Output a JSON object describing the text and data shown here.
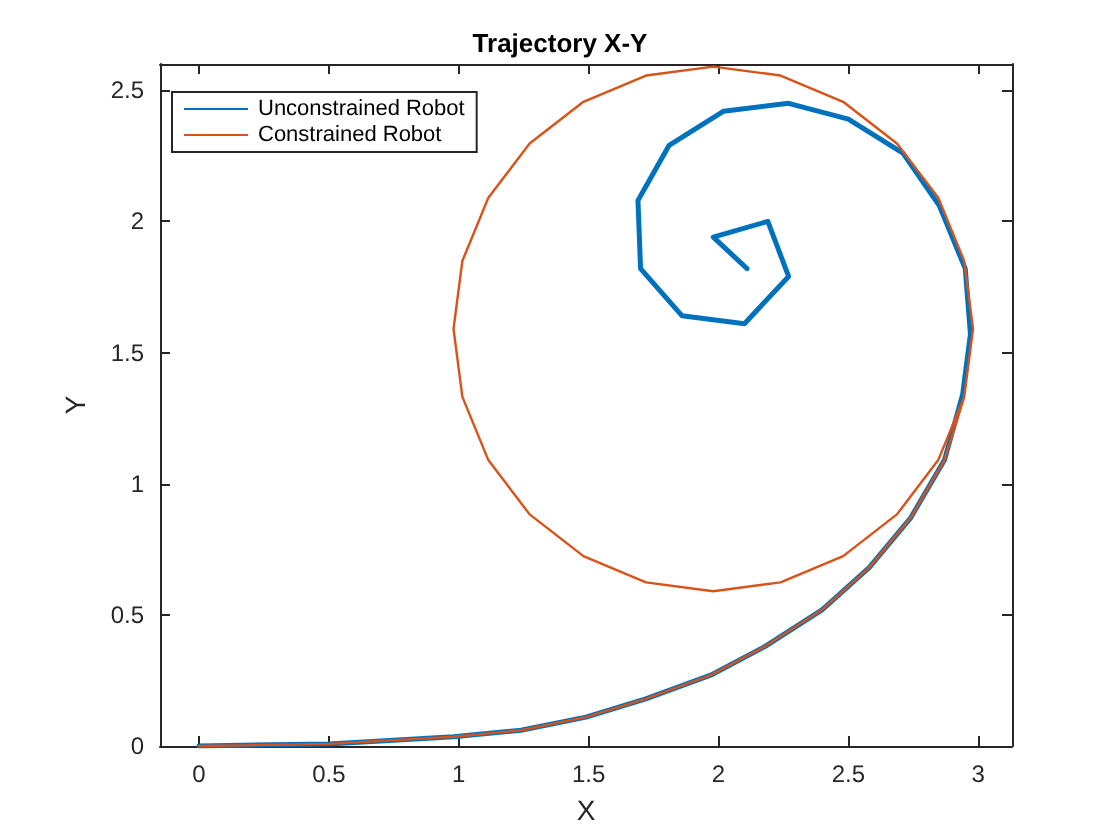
{
  "chart_data": {
    "type": "line",
    "title": "Trajectory X-Y",
    "xlabel": "X",
    "ylabel": "Y",
    "xlim": [
      -0.15,
      3.13
    ],
    "ylim": [
      0,
      2.6
    ],
    "xticks": [
      0,
      0.5,
      1,
      1.5,
      2,
      2.5,
      3
    ],
    "yticks": [
      0,
      0.5,
      1,
      1.5,
      2,
      2.5
    ],
    "grid": false,
    "legend": "top left",
    "marker": "none",
    "line_style": "solid",
    "series": [
      {
        "name": "Unconstrained Robot",
        "color": "#0072bd",
        "x": [
          0,
          0.5,
          0.98,
          1.24,
          1.49,
          1.72,
          1.97,
          2.18,
          2.4,
          2.58,
          2.74,
          2.87,
          2.94,
          2.97,
          2.95,
          2.85,
          2.71,
          2.5,
          2.27,
          2.02,
          1.81,
          1.69,
          1.7,
          1.86,
          2.1,
          2.27,
          2.19,
          1.98,
          2.11
        ],
        "values": [
          0,
          0.008,
          0.035,
          0.06,
          0.11,
          0.18,
          0.27,
          0.38,
          0.52,
          0.68,
          0.87,
          1.09,
          1.34,
          1.57,
          1.82,
          2.06,
          2.26,
          2.39,
          2.45,
          2.42,
          2.29,
          2.08,
          1.82,
          1.64,
          1.61,
          1.79,
          2.0,
          1.94,
          1.82
        ]
      },
      {
        "name": "Constrained Robot",
        "color": "#d95319",
        "x": [
          0,
          0.5,
          0.98,
          1.24,
          1.49,
          1.72,
          1.97,
          2.18,
          2.4,
          2.58,
          2.74,
          2.87,
          2.946,
          2.98,
          2.946,
          2.846,
          2.687,
          2.48,
          2.239,
          1.98,
          1.721,
          1.48,
          1.273,
          1.114,
          1.014,
          0.98,
          1.014,
          1.114,
          1.273,
          1.48,
          1.721,
          1.98,
          2.239,
          2.48,
          2.687,
          2.846,
          2.946
        ],
        "values": [
          0,
          0.008,
          0.035,
          0.06,
          0.11,
          0.18,
          0.27,
          0.38,
          0.52,
          0.68,
          0.87,
          1.09,
          1.331,
          1.59,
          1.849,
          2.09,
          2.297,
          2.456,
          2.556,
          2.59,
          2.556,
          2.456,
          2.297,
          2.09,
          1.849,
          1.59,
          1.331,
          1.09,
          0.883,
          0.724,
          0.624,
          0.59,
          0.624,
          0.724,
          0.883,
          1.09,
          1.331
        ]
      }
    ]
  }
}
